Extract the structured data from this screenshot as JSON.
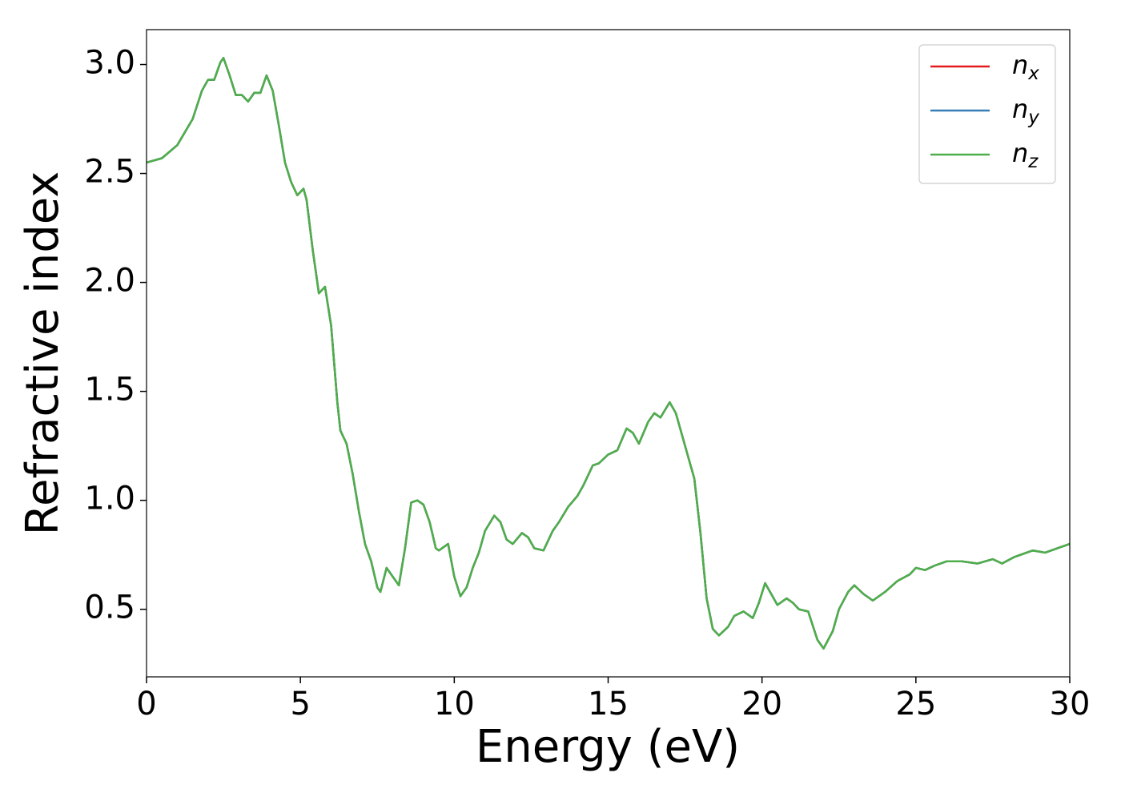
{
  "chart_data": {
    "type": "line",
    "xlabel": "Energy (eV)",
    "ylabel": "Refractive index",
    "x": [
      0,
      0.5,
      1.0,
      1.5,
      1.8,
      2.0,
      2.2,
      2.4,
      2.5,
      2.7,
      2.9,
      3.1,
      3.3,
      3.5,
      3.7,
      3.9,
      4.1,
      4.3,
      4.5,
      4.7,
      4.9,
      5.1,
      5.2,
      5.4,
      5.6,
      5.8,
      6.0,
      6.2,
      6.3,
      6.5,
      6.7,
      6.9,
      7.1,
      7.3,
      7.5,
      7.6,
      7.8,
      8.0,
      8.2,
      8.4,
      8.6,
      8.8,
      9.0,
      9.2,
      9.4,
      9.5,
      9.8,
      10.0,
      10.2,
      10.4,
      10.6,
      10.8,
      11.0,
      11.3,
      11.5,
      11.7,
      11.9,
      12.2,
      12.4,
      12.6,
      12.9,
      13.2,
      13.4,
      13.7,
      14.0,
      14.2,
      14.5,
      14.7,
      15.0,
      15.3,
      15.6,
      15.8,
      16.0,
      16.3,
      16.5,
      16.7,
      17.0,
      17.2,
      17.5,
      17.8,
      18.0,
      18.2,
      18.4,
      18.6,
      18.9,
      19.1,
      19.4,
      19.7,
      19.9,
      20.1,
      20.3,
      20.5,
      20.8,
      21.0,
      21.2,
      21.5,
      21.8,
      22.0,
      22.3,
      22.5,
      22.8,
      23.0,
      23.3,
      23.6,
      24.0,
      24.4,
      24.8,
      25.0,
      25.3,
      25.6,
      26.0,
      26.5,
      27.0,
      27.5,
      27.8,
      28.2,
      28.8,
      29.2,
      29.6,
      30.0
    ],
    "series": [
      {
        "name": "nx",
        "color": "#e41a1c",
        "values": [
          2.55,
          2.57,
          2.63,
          2.75,
          2.88,
          2.93,
          2.93,
          3.01,
          3.03,
          2.95,
          2.86,
          2.86,
          2.83,
          2.87,
          2.87,
          2.95,
          2.88,
          2.72,
          2.55,
          2.46,
          2.4,
          2.43,
          2.38,
          2.15,
          1.95,
          1.98,
          1.8,
          1.45,
          1.32,
          1.26,
          1.12,
          0.95,
          0.8,
          0.72,
          0.6,
          0.58,
          0.69,
          0.65,
          0.61,
          0.78,
          0.99,
          1.0,
          0.98,
          0.9,
          0.78,
          0.77,
          0.8,
          0.65,
          0.56,
          0.6,
          0.69,
          0.76,
          0.86,
          0.93,
          0.9,
          0.82,
          0.8,
          0.85,
          0.83,
          0.78,
          0.77,
          0.86,
          0.9,
          0.97,
          1.02,
          1.07,
          1.16,
          1.17,
          1.21,
          1.23,
          1.33,
          1.31,
          1.26,
          1.36,
          1.4,
          1.38,
          1.45,
          1.4,
          1.25,
          1.1,
          0.85,
          0.55,
          0.41,
          0.38,
          0.42,
          0.47,
          0.49,
          0.46,
          0.53,
          0.62,
          0.57,
          0.52,
          0.55,
          0.53,
          0.5,
          0.49,
          0.36,
          0.32,
          0.4,
          0.5,
          0.58,
          0.61,
          0.57,
          0.54,
          0.58,
          0.63,
          0.66,
          0.69,
          0.68,
          0.7,
          0.72,
          0.72,
          0.71,
          0.73,
          0.71,
          0.74,
          0.77,
          0.76,
          0.78,
          0.8
        ]
      },
      {
        "name": "ny",
        "color": "#377eb8",
        "values": [
          2.55,
          2.57,
          2.63,
          2.75,
          2.88,
          2.93,
          2.93,
          3.01,
          3.03,
          2.95,
          2.86,
          2.86,
          2.83,
          2.87,
          2.87,
          2.95,
          2.88,
          2.72,
          2.55,
          2.46,
          2.4,
          2.43,
          2.38,
          2.15,
          1.95,
          1.98,
          1.8,
          1.45,
          1.32,
          1.26,
          1.12,
          0.95,
          0.8,
          0.72,
          0.6,
          0.58,
          0.69,
          0.65,
          0.61,
          0.78,
          0.99,
          1.0,
          0.98,
          0.9,
          0.78,
          0.77,
          0.8,
          0.65,
          0.56,
          0.6,
          0.69,
          0.76,
          0.86,
          0.93,
          0.9,
          0.82,
          0.8,
          0.85,
          0.83,
          0.78,
          0.77,
          0.86,
          0.9,
          0.97,
          1.02,
          1.07,
          1.16,
          1.17,
          1.21,
          1.23,
          1.33,
          1.31,
          1.26,
          1.36,
          1.4,
          1.38,
          1.45,
          1.4,
          1.25,
          1.1,
          0.85,
          0.55,
          0.41,
          0.38,
          0.42,
          0.47,
          0.49,
          0.46,
          0.53,
          0.62,
          0.57,
          0.52,
          0.55,
          0.53,
          0.5,
          0.49,
          0.36,
          0.32,
          0.4,
          0.5,
          0.58,
          0.61,
          0.57,
          0.54,
          0.58,
          0.63,
          0.66,
          0.69,
          0.68,
          0.7,
          0.72,
          0.72,
          0.71,
          0.73,
          0.71,
          0.74,
          0.77,
          0.76,
          0.78,
          0.8
        ]
      },
      {
        "name": "nz",
        "color": "#4daf4a",
        "values": [
          2.55,
          2.57,
          2.63,
          2.75,
          2.88,
          2.93,
          2.93,
          3.01,
          3.03,
          2.95,
          2.86,
          2.86,
          2.83,
          2.87,
          2.87,
          2.95,
          2.88,
          2.72,
          2.55,
          2.46,
          2.4,
          2.43,
          2.38,
          2.15,
          1.95,
          1.98,
          1.8,
          1.45,
          1.32,
          1.26,
          1.12,
          0.95,
          0.8,
          0.72,
          0.6,
          0.58,
          0.69,
          0.65,
          0.61,
          0.78,
          0.99,
          1.0,
          0.98,
          0.9,
          0.78,
          0.77,
          0.8,
          0.65,
          0.56,
          0.6,
          0.69,
          0.76,
          0.86,
          0.93,
          0.9,
          0.82,
          0.8,
          0.85,
          0.83,
          0.78,
          0.77,
          0.86,
          0.9,
          0.97,
          1.02,
          1.07,
          1.16,
          1.17,
          1.21,
          1.23,
          1.33,
          1.31,
          1.26,
          1.36,
          1.4,
          1.38,
          1.45,
          1.4,
          1.25,
          1.1,
          0.85,
          0.55,
          0.41,
          0.38,
          0.42,
          0.47,
          0.49,
          0.46,
          0.53,
          0.62,
          0.57,
          0.52,
          0.55,
          0.53,
          0.5,
          0.49,
          0.36,
          0.32,
          0.4,
          0.5,
          0.58,
          0.61,
          0.57,
          0.54,
          0.58,
          0.63,
          0.66,
          0.69,
          0.68,
          0.7,
          0.72,
          0.72,
          0.71,
          0.73,
          0.71,
          0.74,
          0.77,
          0.76,
          0.78,
          0.8
        ]
      }
    ],
    "xlim": [
      0,
      30
    ],
    "xticks": [
      0,
      5,
      10,
      15,
      20,
      25,
      30
    ],
    "ylim": [
      0.19,
      3.16
    ],
    "yticks": [
      {
        "value": 0.5,
        "label": "0.5"
      },
      {
        "value": 1,
        "label": "1.0"
      },
      {
        "value": 1.5,
        "label": "1.5"
      },
      {
        "value": 2,
        "label": "2.0"
      },
      {
        "value": 2.5,
        "label": "2.5"
      },
      {
        "value": 3,
        "label": "3.0"
      }
    ],
    "legend": "upper right",
    "grid": false
  }
}
